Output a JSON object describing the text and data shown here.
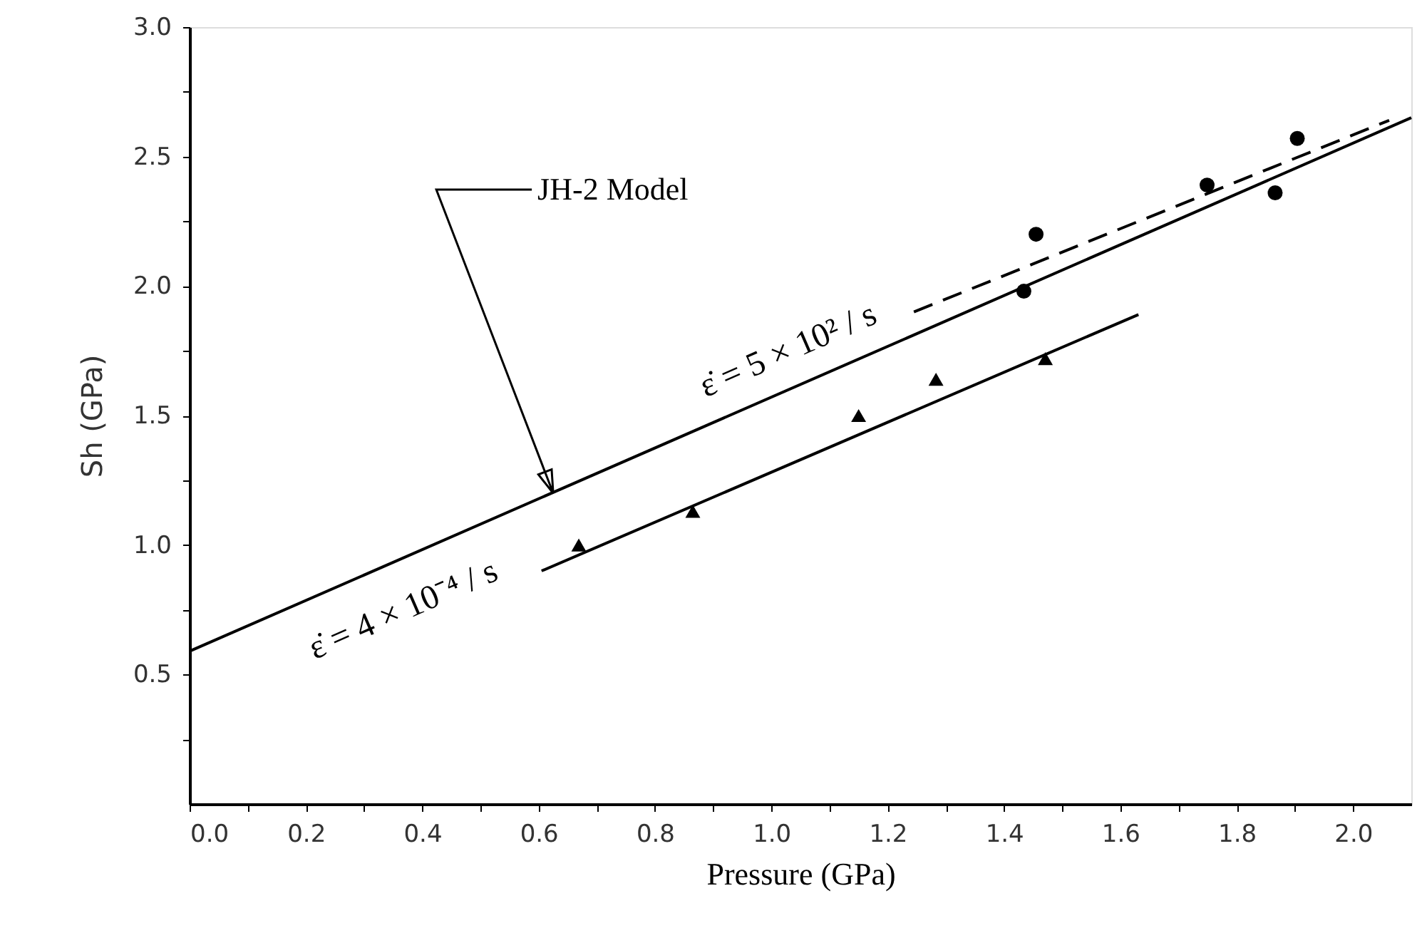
{
  "chart_data": {
    "type": "scatter",
    "xlabel": "Pressure (GPa)",
    "ylabel": "Sh (GPa)",
    "xlim": [
      0,
      2.1
    ],
    "ylim": [
      0,
      3.0
    ],
    "xticks": [
      {
        "value": 0,
        "label": "0.0"
      },
      {
        "value": 0.1,
        "label": null
      },
      {
        "value": 0.2,
        "label": "0.2"
      },
      {
        "value": 0.3,
        "label": null
      },
      {
        "value": 0.4,
        "label": "0.4"
      },
      {
        "value": 0.5,
        "label": null
      },
      {
        "value": 0.6,
        "label": "0.6"
      },
      {
        "value": 0.7,
        "label": null
      },
      {
        "value": 0.8,
        "label": "0.8"
      },
      {
        "value": 0.9,
        "label": null
      },
      {
        "value": 1.0,
        "label": "1.0"
      },
      {
        "value": 1.1,
        "label": null
      },
      {
        "value": 1.2,
        "label": "1.2"
      },
      {
        "value": 1.3,
        "label": null
      },
      {
        "value": 1.4,
        "label": "1.4"
      },
      {
        "value": 1.5,
        "label": null
      },
      {
        "value": 1.6,
        "label": "1.6"
      },
      {
        "value": 1.7,
        "label": null
      },
      {
        "value": 1.8,
        "label": "1.8"
      },
      {
        "value": 1.9,
        "label": null
      },
      {
        "value": 2.0,
        "label": "2.0"
      }
    ],
    "yticks": [
      {
        "value": 0.25,
        "label": null
      },
      0.5,
      {
        "value": 0.75,
        "label": null
      },
      {
        "value": 1.0,
        "label": "1.0"
      },
      {
        "value": 1.25,
        "label": null
      },
      1.5,
      {
        "value": 1.75,
        "label": null
      },
      {
        "value": 2.0,
        "label": "2.0"
      },
      {
        "value": 2.25,
        "label": null
      },
      2.5,
      {
        "value": 2.75,
        "label": null
      },
      {
        "value": 3.0,
        "label": "3.0"
      }
    ],
    "grid": false,
    "series": [
      {
        "marker": "circle",
        "color": "#000000",
        "x": [
          1.434,
          1.455,
          1.749,
          1.866,
          1.904
        ],
        "values": [
          1.98,
          2.2,
          2.39,
          2.36,
          2.57
        ]
      },
      {
        "marker": "triangle",
        "color": "#000000",
        "x": [
          0.669,
          0.865,
          1.15,
          1.283,
          1.471
        ],
        "values": [
          1.0,
          1.13,
          1.5,
          1.64,
          1.72
        ]
      },
      {
        "type": "line",
        "line_style": "solid",
        "color": "#000000",
        "x": [
          0,
          2.1
        ],
        "values": [
          0.59,
          2.65
        ]
      },
      {
        "type": "line",
        "line_style": "dashed",
        "color": "#000000",
        "x": [
          1.245,
          2.062
        ],
        "values": [
          1.9,
          2.64
        ]
      },
      {
        "type": "line",
        "line_style": "solid",
        "color": "#000000",
        "x": [
          0.605,
          1.631
        ],
        "values": [
          0.9,
          1.89
        ]
      }
    ],
    "annotations": [
      {
        "text": "JH-2 Model",
        "x": 0.625,
        "y": 1.2
      },
      "ε̇ = 5 × 10² / s",
      "ε̇ = 4 × 10⁻⁴ / s"
    ]
  }
}
